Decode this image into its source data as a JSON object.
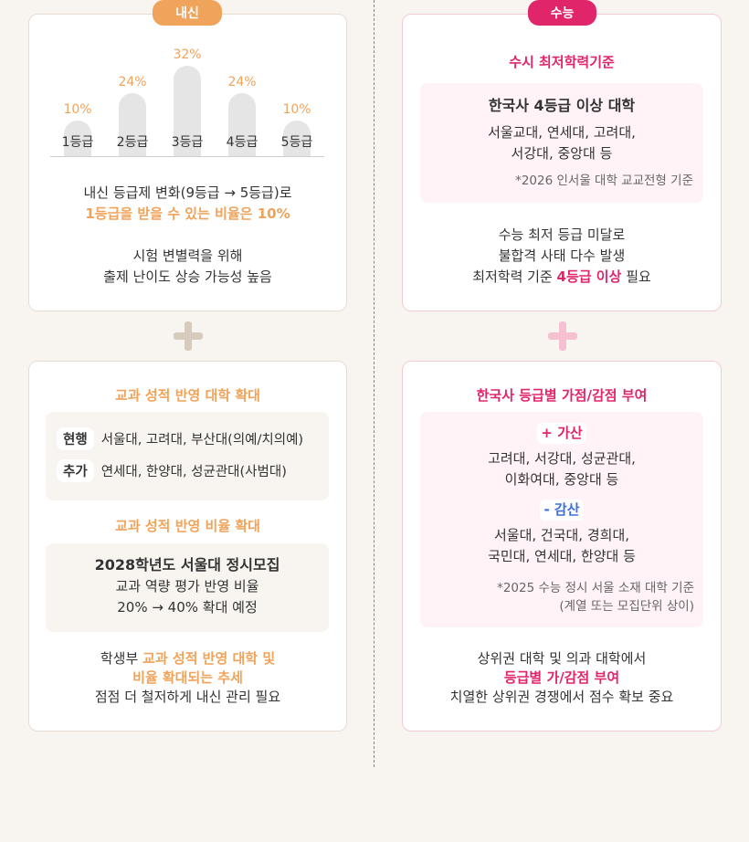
{
  "naesin": {
    "tag": "내신",
    "bars": [
      {
        "label": "1등급",
        "pct_label": "10%",
        "value": 10
      },
      {
        "label": "2등급",
        "pct_label": "24%",
        "value": 24
      },
      {
        "label": "3등급",
        "pct_label": "32%",
        "value": 32
      },
      {
        "label": "4등급",
        "pct_label": "24%",
        "value": 24
      },
      {
        "label": "5등급",
        "pct_label": "10%",
        "value": 10
      }
    ],
    "desc1": "내신 등급제 변화(9등급 → 5등급)로",
    "desc2": "1등급을 받을 수 있는 비율은 10%",
    "desc3": "시험 변별력을 위해",
    "desc4": "출제 난이도 상승 가능성 높음"
  },
  "suneung": {
    "tag": "수능",
    "heading": "수시 최저학력기준",
    "box_title": "한국사 4등급 이상 대학",
    "box_line1": "서울교대, 연세대, 고려대,",
    "box_line2": "서강대, 중앙대 등",
    "box_note": "*2026 인서울 대학 교교전형 기준",
    "desc1": "수능 최저 등급 미달로",
    "desc2": "불합격 사태 다수 발생",
    "desc3_pre": "최저학력 기준 ",
    "desc3_hl": "4등급 이상",
    "desc3_post": " 필요"
  },
  "gyogwa": {
    "heading1": "교과 성적 반영 대학 확대",
    "row1_label": "현행",
    "row1_text": "서울대, 고려대, 부산대(의예/치의예)",
    "row2_label": "추가",
    "row2_text": "연세대, 한양대, 성균관대(사범대)",
    "heading2": "교과 성적 반영 비율 확대",
    "box2_title": "2028학년도 서울대 정시모집",
    "box2_line1": "교과 역량 평가 반영 비율",
    "box2_line2": "20% → 40% 확대 예정",
    "desc1_pre": "학생부 ",
    "desc1_hl": "교과 성적 반영 대학 및",
    "desc2_hl": "비율 확대되는 추세",
    "desc3": "점점 더 철저하게 내신 관리 필요"
  },
  "history": {
    "heading": "한국사 등급별 가점/감점 부여",
    "plus_label": "+ 가산",
    "plus_line1": "고려대, 서강대, 성균관대,",
    "plus_line2": "이화여대, 중앙대 등",
    "minus_label": "- 감산",
    "minus_line1": "서울대, 건국대, 경희대,",
    "minus_line2": "국민대, 연세대, 한양대 등",
    "note1": "*2025 수능 정시 서울 소재 대학 기준",
    "note2": "(계열 또는 모집단위 상이)",
    "desc1": "상위권 대학 및 의과 대학에서",
    "desc2": "등급별 가/감점 부여",
    "desc3": "치열한 상위권 경쟁에서 점수 확보 중요"
  },
  "colors": {
    "orange": "#f0a35b",
    "pink": "#e0256b",
    "blue": "#3f6fd8"
  }
}
